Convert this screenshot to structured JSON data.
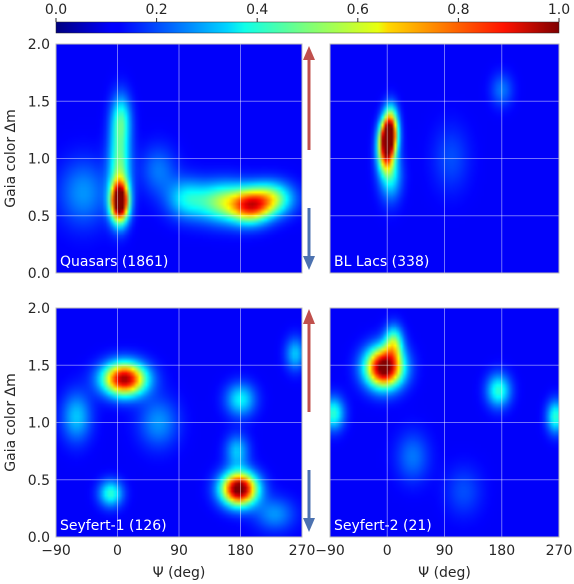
{
  "colorbar": {
    "ticks": [
      "0.0",
      "0.2",
      "0.4",
      "0.6",
      "0.8",
      "1.0"
    ],
    "range": [
      0,
      1
    ],
    "colormap": "jet"
  },
  "chart_data": [
    {
      "type": "heatmap",
      "label": "Quasars (1861)",
      "xlim": [
        -90,
        270
      ],
      "ylim": [
        0.0,
        2.0
      ],
      "xticks": [
        "−90",
        "0",
        "90",
        "180",
        "270"
      ],
      "yticks": [
        "0.0",
        "0.5",
        "1.0",
        "1.5",
        "2.0"
      ],
      "ylabel": "Gaia color Δm",
      "xlabel": "",
      "arrow": "up-red-down-blue",
      "blobs": [
        {
          "x": 3,
          "y": 0.62,
          "sx": 9,
          "sy": 0.12,
          "a": 1.0
        },
        {
          "x": 3,
          "y": 0.95,
          "sx": 11,
          "sy": 0.25,
          "a": 0.35
        },
        {
          "x": 5,
          "y": 1.35,
          "sx": 10,
          "sy": 0.15,
          "a": 0.25
        },
        {
          "x": 155,
          "y": 0.62,
          "sx": 28,
          "sy": 0.12,
          "a": 0.4
        },
        {
          "x": 195,
          "y": 0.58,
          "sx": 20,
          "sy": 0.1,
          "a": 0.55
        },
        {
          "x": 225,
          "y": 0.65,
          "sx": 22,
          "sy": 0.1,
          "a": 0.4
        },
        {
          "x": 100,
          "y": 0.65,
          "sx": 20,
          "sy": 0.12,
          "a": 0.22
        },
        {
          "x": -50,
          "y": 0.7,
          "sx": 25,
          "sy": 0.2,
          "a": 0.15
        },
        {
          "x": 60,
          "y": 0.9,
          "sx": 18,
          "sy": 0.15,
          "a": 0.12
        }
      ]
    },
    {
      "type": "heatmap",
      "label": "BL Lacs (338)",
      "xlim": [
        -90,
        270
      ],
      "ylim": [
        0.0,
        2.0
      ],
      "xticks": [
        "−90",
        "0",
        "90",
        "180",
        "270"
      ],
      "yticks": [
        "0.0",
        "0.5",
        "1.0",
        "1.5",
        "2.0"
      ],
      "ylabel": "",
      "xlabel": "",
      "blobs": [
        {
          "x": 2,
          "y": 1.2,
          "sx": 9,
          "sy": 0.1,
          "a": 0.9
        },
        {
          "x": -2,
          "y": 1.05,
          "sx": 9,
          "sy": 0.12,
          "a": 0.6
        },
        {
          "x": 5,
          "y": 1.35,
          "sx": 8,
          "sy": 0.1,
          "a": 0.35
        },
        {
          "x": 5,
          "y": 0.85,
          "sx": 12,
          "sy": 0.15,
          "a": 0.25
        },
        {
          "x": 180,
          "y": 1.6,
          "sx": 12,
          "sy": 0.1,
          "a": 0.12
        },
        {
          "x": 100,
          "y": 1.0,
          "sx": 20,
          "sy": 0.2,
          "a": 0.08
        }
      ]
    },
    {
      "type": "heatmap",
      "label": "Seyfert-1 (126)",
      "xlim": [
        -90,
        270
      ],
      "ylim": [
        0.0,
        2.0
      ],
      "xticks": [
        "−90",
        "0",
        "90",
        "180",
        "270"
      ],
      "yticks": [
        "0.0",
        "0.5",
        "1.0",
        "1.5",
        "2.0"
      ],
      "ylabel": "Gaia color Δm",
      "xlabel": "Ψ (deg)",
      "arrow": "up-red-down-blue",
      "blobs": [
        {
          "x": 10,
          "y": 1.38,
          "sx": 22,
          "sy": 0.1,
          "a": 0.85
        },
        {
          "x": 178,
          "y": 0.42,
          "sx": 18,
          "sy": 0.1,
          "a": 0.95
        },
        {
          "x": -10,
          "y": 0.38,
          "sx": 12,
          "sy": 0.08,
          "a": 0.3
        },
        {
          "x": 180,
          "y": 1.2,
          "sx": 15,
          "sy": 0.1,
          "a": 0.25
        },
        {
          "x": 260,
          "y": 1.6,
          "sx": 10,
          "sy": 0.1,
          "a": 0.2
        },
        {
          "x": -60,
          "y": 1.05,
          "sx": 15,
          "sy": 0.15,
          "a": 0.2
        },
        {
          "x": 60,
          "y": 1.0,
          "sx": 20,
          "sy": 0.15,
          "a": 0.15
        },
        {
          "x": 175,
          "y": 0.75,
          "sx": 12,
          "sy": 0.1,
          "a": 0.2
        },
        {
          "x": 230,
          "y": 0.2,
          "sx": 20,
          "sy": 0.1,
          "a": 0.15
        }
      ]
    },
    {
      "type": "heatmap",
      "label": "Seyfert-2 (21)",
      "xlim": [
        -90,
        270
      ],
      "ylim": [
        0.0,
        2.0
      ],
      "xticks": [
        "−90",
        "0",
        "90",
        "180",
        "270"
      ],
      "yticks": [
        "0.0",
        "0.5",
        "1.0",
        "1.5",
        "2.0"
      ],
      "ylabel": "",
      "xlabel": "Ψ (deg)",
      "blobs": [
        {
          "x": -5,
          "y": 1.48,
          "sx": 20,
          "sy": 0.12,
          "a": 0.95
        },
        {
          "x": 10,
          "y": 1.7,
          "sx": 10,
          "sy": 0.1,
          "a": 0.35
        },
        {
          "x": 175,
          "y": 1.28,
          "sx": 13,
          "sy": 0.1,
          "a": 0.3
        },
        {
          "x": -85,
          "y": 1.08,
          "sx": 12,
          "sy": 0.1,
          "a": 0.3
        },
        {
          "x": 265,
          "y": 1.05,
          "sx": 10,
          "sy": 0.1,
          "a": 0.3
        },
        {
          "x": 40,
          "y": 0.7,
          "sx": 18,
          "sy": 0.15,
          "a": 0.12
        },
        {
          "x": 120,
          "y": 0.4,
          "sx": 20,
          "sy": 0.15,
          "a": 0.08
        }
      ]
    }
  ]
}
